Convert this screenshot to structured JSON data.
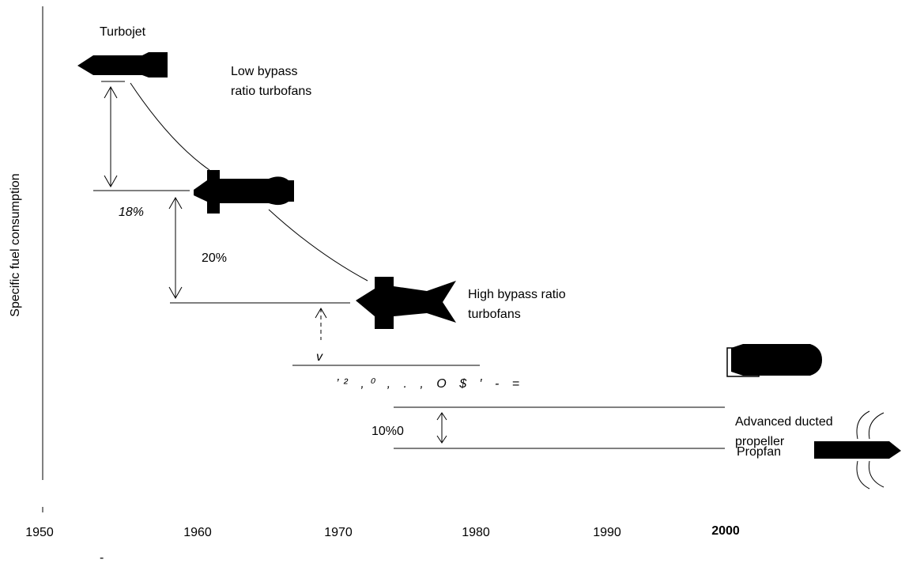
{
  "axes": {
    "y_label": "Specific fuel consumption",
    "x_ticks": [
      "1950",
      "1960",
      "1970",
      "1980",
      "1990",
      "2000"
    ]
  },
  "engines": [
    {
      "label": [
        "Turbojet"
      ]
    },
    {
      "label": [
        "Low bypass",
        "ratio turbofans"
      ]
    },
    {
      "label": [
        "High bypass ratio",
        "turbofans"
      ]
    },
    {
      "label": [
        "Advanced ducted",
        "propeller"
      ]
    },
    {
      "label": [
        "Propfan"
      ]
    }
  ],
  "steps": [
    "18%",
    "20%",
    "10%0"
  ],
  "artifacts": [
    "v",
    "’² ,⁰ , . , O $ ′ - =",
    "-"
  ]
}
